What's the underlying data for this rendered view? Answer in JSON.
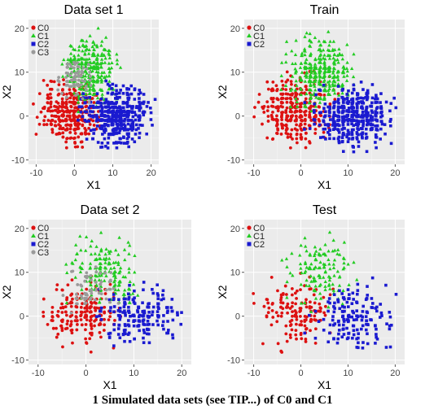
{
  "caption": "1 Simulated data sets (see TIP...) of C0 and C1",
  "colors": {
    "C0": "#dd1111",
    "C1": "#22cc22",
    "C2": "#1a1ad0",
    "C3": "#9a9a9a",
    "panel_bg": "#ebebeb",
    "grid": "#ffffff"
  },
  "chart_data": [
    {
      "type": "scatter",
      "title": "Data set 1",
      "xlabel": "X1",
      "ylabel": "X2",
      "xlim": [
        -12,
        22
      ],
      "ylim": [
        -11,
        22
      ],
      "xticks": [
        -10,
        0,
        10,
        20
      ],
      "yticks": [
        -10,
        0,
        10,
        20
      ],
      "grid": true,
      "legend_position": "top-left",
      "series": [
        {
          "name": "C0",
          "color": "#dd1111",
          "marker": "circle",
          "count": 340,
          "center": [
            -1,
            1
          ],
          "spread": [
            4.2,
            4.2
          ]
        },
        {
          "name": "C1",
          "color": "#22cc22",
          "marker": "triangle",
          "count": 320,
          "center": [
            4,
            10
          ],
          "spread": [
            3.8,
            4.3
          ]
        },
        {
          "name": "C2",
          "color": "#1a1ad0",
          "marker": "square",
          "count": 420,
          "center": [
            11,
            0
          ],
          "spread": [
            4.5,
            3.6
          ]
        },
        {
          "name": "C3",
          "color": "#9a9a9a",
          "marker": "circle",
          "count": 70,
          "center": [
            0,
            8
          ],
          "spread": [
            2.5,
            2.5
          ]
        }
      ]
    },
    {
      "type": "scatter",
      "title": "Train",
      "xlabel": "X1",
      "ylabel": "X2",
      "xlim": [
        -12,
        22
      ],
      "ylim": [
        -11,
        22
      ],
      "xticks": [
        -10,
        0,
        10,
        20
      ],
      "yticks": [
        -10,
        0,
        10,
        20
      ],
      "grid": true,
      "legend_position": "top-left",
      "series": [
        {
          "name": "C0",
          "color": "#dd1111",
          "marker": "circle",
          "count": 340,
          "center": [
            -1,
            1
          ],
          "spread": [
            4.2,
            4.2
          ]
        },
        {
          "name": "C1",
          "color": "#22cc22",
          "marker": "triangle",
          "count": 330,
          "center": [
            4,
            10
          ],
          "spread": [
            3.8,
            4.3
          ]
        },
        {
          "name": "C2",
          "color": "#1a1ad0",
          "marker": "square",
          "count": 420,
          "center": [
            11,
            0
          ],
          "spread": [
            4.5,
            3.6
          ]
        }
      ]
    },
    {
      "type": "scatter",
      "title": "Data set 2",
      "xlabel": "X1",
      "ylabel": "X2",
      "xlim": [
        -12,
        22
      ],
      "ylim": [
        -11,
        22
      ],
      "xticks": [
        -10,
        0,
        10,
        20
      ],
      "yticks": [
        -10,
        0,
        10,
        20
      ],
      "grid": true,
      "legend_position": "top-left",
      "series": [
        {
          "name": "C0",
          "color": "#dd1111",
          "marker": "circle",
          "count": 190,
          "center": [
            -1,
            1
          ],
          "spread": [
            4.2,
            4.2
          ]
        },
        {
          "name": "C1",
          "color": "#22cc22",
          "marker": "triangle",
          "count": 170,
          "center": [
            4,
            10
          ],
          "spread": [
            3.8,
            4.3
          ]
        },
        {
          "name": "C2",
          "color": "#1a1ad0",
          "marker": "square",
          "count": 190,
          "center": [
            11,
            0
          ],
          "spread": [
            4.5,
            3.6
          ]
        },
        {
          "name": "C3",
          "color": "#9a9a9a",
          "marker": "circle",
          "count": 60,
          "center": [
            1,
            6
          ],
          "spread": [
            3.5,
            3.0
          ]
        }
      ]
    },
    {
      "type": "scatter",
      "title": "Test",
      "xlabel": "X1",
      "ylabel": "X2",
      "xlim": [
        -12,
        22
      ],
      "ylim": [
        -11,
        22
      ],
      "xticks": [
        -10,
        0,
        10,
        20
      ],
      "yticks": [
        -10,
        0,
        10,
        20
      ],
      "grid": true,
      "legend_position": "top-left",
      "series": [
        {
          "name": "C0",
          "color": "#dd1111",
          "marker": "circle",
          "count": 150,
          "center": [
            -1,
            1
          ],
          "spread": [
            4.2,
            4.2
          ]
        },
        {
          "name": "C1",
          "color": "#22cc22",
          "marker": "triangle",
          "count": 130,
          "center": [
            4,
            10
          ],
          "spread": [
            3.8,
            4.3
          ]
        },
        {
          "name": "C2",
          "color": "#1a1ad0",
          "marker": "square",
          "count": 160,
          "center": [
            11,
            0
          ],
          "spread": [
            4.5,
            3.6
          ]
        }
      ]
    }
  ]
}
